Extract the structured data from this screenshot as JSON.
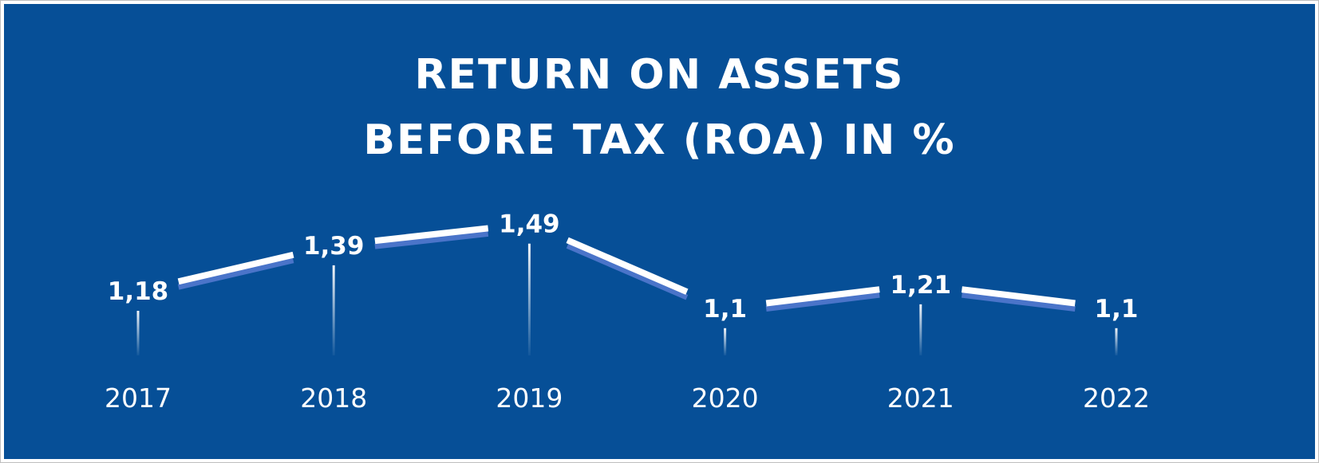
{
  "chart_data": {
    "type": "line",
    "title_lines": [
      "RETURN ON ASSETS",
      "BEFORE TAX (ROA) IN %"
    ],
    "categories": [
      "2017",
      "2018",
      "2019",
      "2020",
      "2021",
      "2022"
    ],
    "values": [
      1.18,
      1.39,
      1.49,
      1.1,
      1.21,
      1.1
    ],
    "value_labels": [
      "1,18",
      "1,39",
      "1,49",
      "1,1",
      "1,21",
      "1,1"
    ],
    "xlabel": "",
    "ylabel": "",
    "grid": false,
    "legend": "none",
    "colors": {
      "background": "#064f97",
      "line": "#ffffff",
      "line_shadow": "#4a74c9",
      "text": "#ffffff"
    }
  }
}
